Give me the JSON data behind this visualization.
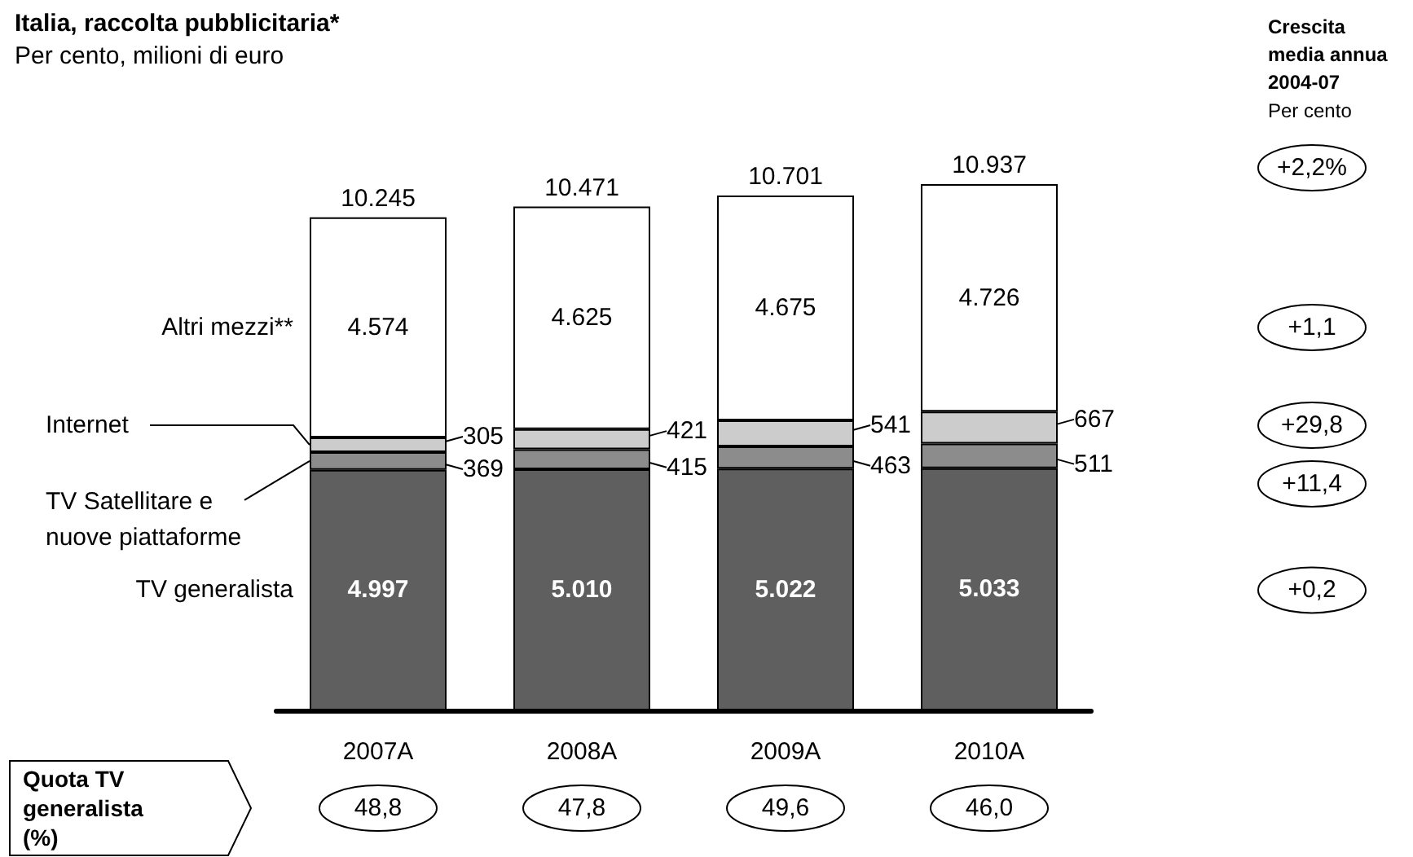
{
  "chart_data": {
    "type": "bar",
    "title": "Italia, raccolta pubblicitaria*",
    "subtitle": "Per cento, milioni di euro",
    "categories": [
      "2007A",
      "2008A",
      "2009A",
      "2010A"
    ],
    "stacked": true,
    "legend": false,
    "grid": false,
    "data_labels": false,
    "series": [
      {
        "name": "TV generalista",
        "color": "#5f5f5f",
        "values": [
          4997,
          5010,
          5022,
          5033
        ],
        "value_labels": [
          "4.997",
          "5.010",
          "5.022",
          "5.033"
        ]
      },
      {
        "name": "TV Satellitare e nuove piattaforme",
        "color": "#8c8c8c",
        "values": [
          369,
          415,
          463,
          511
        ],
        "value_labels": [
          "369",
          "415",
          "463",
          "511"
        ]
      },
      {
        "name": "Internet",
        "color": "#cccccc",
        "values": [
          305,
          421,
          541,
          667
        ],
        "value_labels": [
          "305",
          "421",
          "541",
          "667"
        ]
      },
      {
        "name": "Altri mezzi**",
        "color": "#ffffff",
        "values": [
          4574,
          4625,
          4675,
          4726
        ],
        "value_labels": [
          "4.574",
          "4.625",
          "4.675",
          "4.726"
        ]
      }
    ],
    "totals": [
      "10.245",
      "10.471",
      "10.701",
      "10.937"
    ],
    "annotations": [
      "Crescita media annua 2004-07",
      "Per cento",
      "+2,2%",
      "+1,1",
      "+29,8",
      "+11,4",
      "+0,2",
      "Quota TV generalista (%)",
      "48,8",
      "47,8",
      "49,6",
      "46,0"
    ]
  }
}
